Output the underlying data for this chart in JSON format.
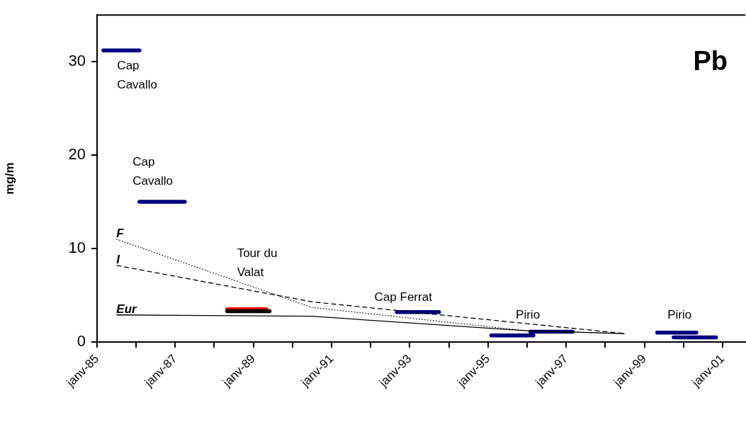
{
  "chart_data": {
    "type": "line",
    "title": "Pb",
    "ylabel": "mg/m",
    "xlim": [
      "1985-01",
      "2001-08"
    ],
    "ylim": [
      0,
      35
    ],
    "yticks": [
      0,
      10,
      20,
      30
    ],
    "xticks": [
      {
        "value": "1985-01",
        "label": "janv-85"
      },
      {
        "value": "1986-01",
        "label": null
      },
      {
        "value": "1987-01",
        "label": "janv-87"
      },
      {
        "value": "1988-01",
        "label": null
      },
      {
        "value": "1989-01",
        "label": "janv-89"
      },
      {
        "value": "1990-01",
        "label": null
      },
      {
        "value": "1991-01",
        "label": "janv-91"
      },
      {
        "value": "1992-01",
        "label": null
      },
      {
        "value": "1993-01",
        "label": "janv-93"
      },
      {
        "value": "1994-01",
        "label": null
      },
      {
        "value": "1995-01",
        "label": "janv-95"
      },
      {
        "value": "1996-01",
        "label": null
      },
      {
        "value": "1997-01",
        "label": "janv-97"
      },
      {
        "value": "1998-01",
        "label": null
      },
      {
        "value": "1999-01",
        "label": "janv-99"
      },
      {
        "value": "2000-01",
        "label": null
      },
      {
        "value": "2001-01",
        "label": "janv-01"
      }
    ],
    "grid": false,
    "legend": false,
    "marker": "none",
    "series": [
      {
        "name": "F",
        "color": "#000000",
        "line_style": "dotted",
        "x": [
          "1985-07",
          "1990-07",
          "1996-01",
          "1998-07"
        ],
        "values": [
          11,
          3.7,
          1.2,
          0.9
        ]
      },
      {
        "name": "I",
        "color": "#000000",
        "line_style": "dashed",
        "x": [
          "1985-07",
          "1990-07",
          "1998-07"
        ],
        "values": [
          8.2,
          4.3,
          0.9
        ]
      },
      {
        "name": "Eur",
        "color": "#000000",
        "line_style": "solid",
        "x": [
          "1985-07",
          "1990-07",
          "1996-01",
          "1998-07"
        ],
        "values": [
          2.9,
          2.75,
          1.2,
          0.9
        ]
      },
      {
        "color": "#000080",
        "x": [
          "1985-03",
          "1986-02"
        ],
        "values": [
          31.2,
          31.2
        ]
      },
      {
        "color": "#000080",
        "x": [
          "1986-02",
          "1987-04"
        ],
        "values": [
          15,
          15
        ]
      },
      {
        "color": "#000000",
        "x": [
          "1988-05",
          "1989-06"
        ],
        "values": [
          3.3,
          3.3
        ]
      },
      {
        "color": "#ff0000",
        "x": [
          "1988-05",
          "1989-05"
        ],
        "values": [
          3.5,
          3.5
        ]
      },
      {
        "color": "#000080",
        "x": [
          "1992-09",
          "1993-10"
        ],
        "values": [
          3.2,
          3.2
        ]
      },
      {
        "color": "#000080",
        "x": [
          "1995-02",
          "1996-03"
        ],
        "values": [
          0.7,
          0.7
        ]
      },
      {
        "color": "#000080",
        "x": [
          "1996-02",
          "1997-03"
        ],
        "values": [
          1.1,
          1.1
        ]
      },
      {
        "color": "#000080",
        "x": [
          "1999-05",
          "2000-05"
        ],
        "values": [
          1,
          1
        ]
      },
      {
        "color": "#000080",
        "x": [
          "1999-10",
          "2000-11"
        ],
        "values": [
          0.5,
          0.5
        ]
      }
    ],
    "annotations": [
      "Cap\nCavallo",
      "Cap\nCavallo",
      "Tour du\nValat",
      "Cap Ferrat",
      "Pirio",
      "Pirio"
    ]
  }
}
